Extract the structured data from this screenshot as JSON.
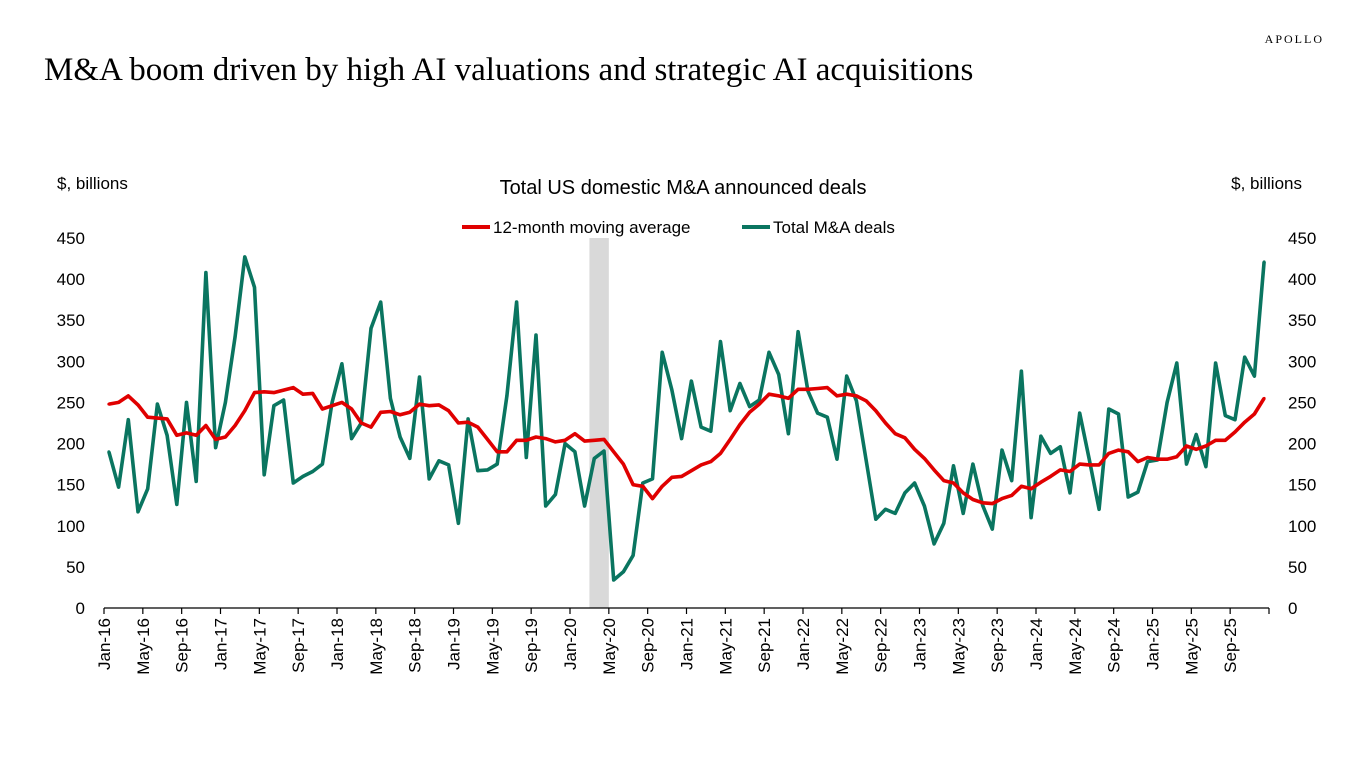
{
  "brand": "APOLLO",
  "page_title": "M&A boom driven by high AI valuations and strategic AI acquisitions",
  "chart_data": {
    "type": "line",
    "title": "Total US domestic M&A announced deals",
    "ylabel_left": "$, billions",
    "ylabel_right": "$, billions",
    "ylim": [
      0,
      450
    ],
    "yticks": [
      0,
      50,
      100,
      150,
      200,
      250,
      300,
      350,
      400,
      450
    ],
    "x_start": "Jan-16",
    "x_end": "Dec-25",
    "xtick_labels": [
      "Jan-16",
      "May-16",
      "Sep-16",
      "Jan-17",
      "May-17",
      "Sep-17",
      "Jan-18",
      "May-18",
      "Sep-18",
      "Jan-19",
      "May-19",
      "Sep-19",
      "Jan-20",
      "May-20",
      "Sep-20",
      "Jan-21",
      "May-21",
      "Sep-21",
      "Jan-22",
      "May-22",
      "Sep-22",
      "Jan-23",
      "May-23",
      "Sep-23",
      "Jan-24",
      "May-24",
      "Sep-24",
      "Jan-25",
      "May-25",
      "Sep-25"
    ],
    "legend_position": "top-center",
    "grid": false,
    "shaded_period": {
      "start": "Mar-20",
      "end": "Apr-20",
      "color": "#d9d9d9"
    },
    "series": [
      {
        "name": "12-month moving average",
        "color": "#e00000",
        "values": [
          248,
          250,
          258,
          247,
          232,
          231,
          230,
          210,
          213,
          210,
          222,
          205,
          208,
          222,
          240,
          262,
          263,
          262,
          265,
          268,
          260,
          261,
          242,
          246,
          250,
          242,
          225,
          220,
          238,
          239,
          235,
          238,
          248,
          246,
          247,
          240,
          225,
          226,
          220,
          205,
          190,
          190,
          204,
          204,
          208,
          206,
          202,
          204,
          212,
          203,
          204,
          205,
          190,
          175,
          150,
          148,
          133,
          148,
          159,
          160,
          167,
          174,
          178,
          188,
          205,
          223,
          238,
          248,
          260,
          258,
          255,
          266,
          266,
          267,
          268,
          258,
          260,
          258,
          252,
          240,
          225,
          212,
          207,
          193,
          182,
          168,
          155,
          152,
          140,
          132,
          128,
          127,
          133,
          137,
          148,
          145,
          153,
          160,
          168,
          166,
          175,
          174,
          174,
          188,
          192,
          190,
          178,
          183,
          181,
          181,
          184,
          197,
          193,
          197,
          204,
          204,
          214,
          226,
          236,
          255
        ]
      },
      {
        "name": "Total M&A deals",
        "color": "#0a7560",
        "values": [
          190,
          147,
          229,
          117,
          145,
          248,
          210,
          126,
          250,
          154,
          408,
          195,
          250,
          330,
          427,
          390,
          162,
          246,
          253,
          152,
          160,
          166,
          175,
          250,
          297,
          206,
          225,
          340,
          372,
          255,
          208,
          182,
          281,
          157,
          179,
          174,
          103,
          230,
          167,
          168,
          175,
          258,
          372,
          183,
          332,
          124,
          138,
          200,
          190,
          124,
          182,
          191,
          34,
          44,
          64,
          152,
          157,
          311,
          265,
          206,
          276,
          220,
          215,
          324,
          240,
          273,
          245,
          253,
          311,
          284,
          212,
          336,
          264,
          237,
          232,
          181,
          282,
          252,
          180,
          108,
          120,
          115,
          140,
          152,
          124,
          78,
          103,
          173,
          115,
          175,
          125,
          96,
          192,
          155,
          288,
          110,
          209,
          188,
          196,
          140,
          237,
          180,
          120,
          242,
          236,
          135,
          141,
          178,
          180,
          250,
          298,
          175,
          211,
          172,
          298,
          234,
          229,
          305,
          282,
          421
        ]
      }
    ]
  }
}
